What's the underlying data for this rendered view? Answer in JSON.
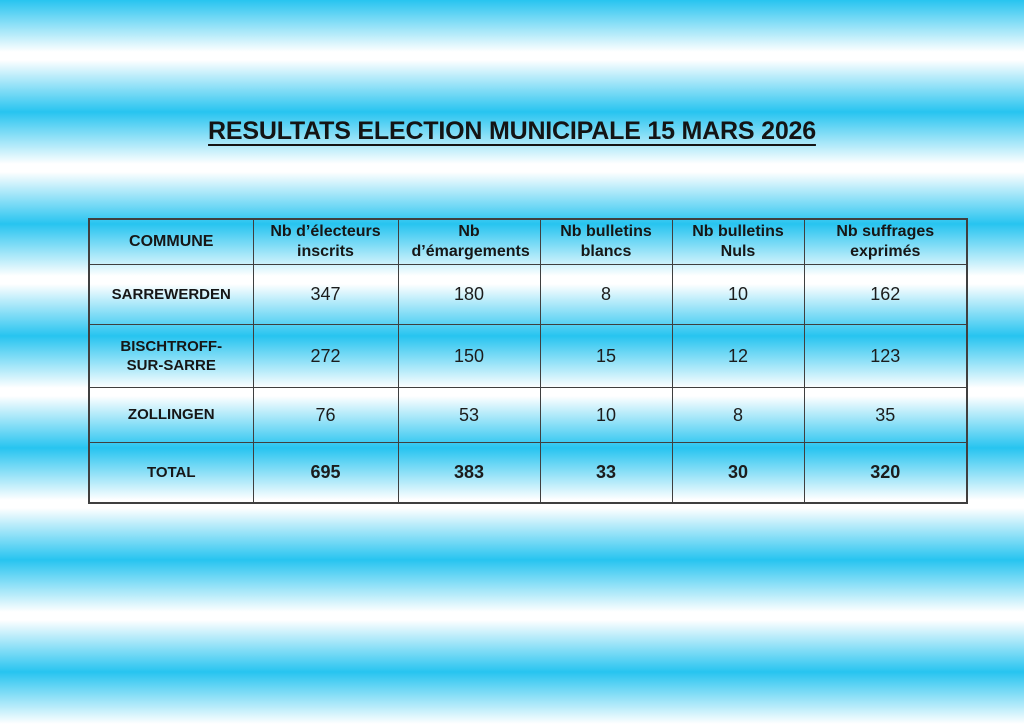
{
  "title": "RESULTATS ELECTION MUNICIPALE 15 MARS 2026",
  "table": {
    "headers": [
      "COMMUNE",
      "Nb d’électeurs inscrits",
      "Nb d’émargements",
      "Nb bulletins blancs",
      "Nb bulletins Nuls",
      "Nb suffrages exprimés"
    ],
    "rows": [
      {
        "commune": "SARREWERDEN",
        "values": [
          "347",
          "180",
          "8",
          "10",
          "162"
        ]
      },
      {
        "commune": "BISCHTROFF-SUR-SARRE",
        "values": [
          "272",
          "150",
          "15",
          "12",
          "123"
        ]
      },
      {
        "commune": "ZOLLINGEN",
        "values": [
          "76",
          "53",
          "10",
          "8",
          "35"
        ]
      },
      {
        "commune": "TOTAL",
        "values": [
          "695",
          "383",
          "33",
          "30",
          "320"
        ]
      }
    ]
  },
  "colors": {
    "stripe_cyan": "#27c4f0",
    "stripe_white": "#ffffff",
    "table_border": "#3f3f3f",
    "text": "#1c1c1c"
  }
}
